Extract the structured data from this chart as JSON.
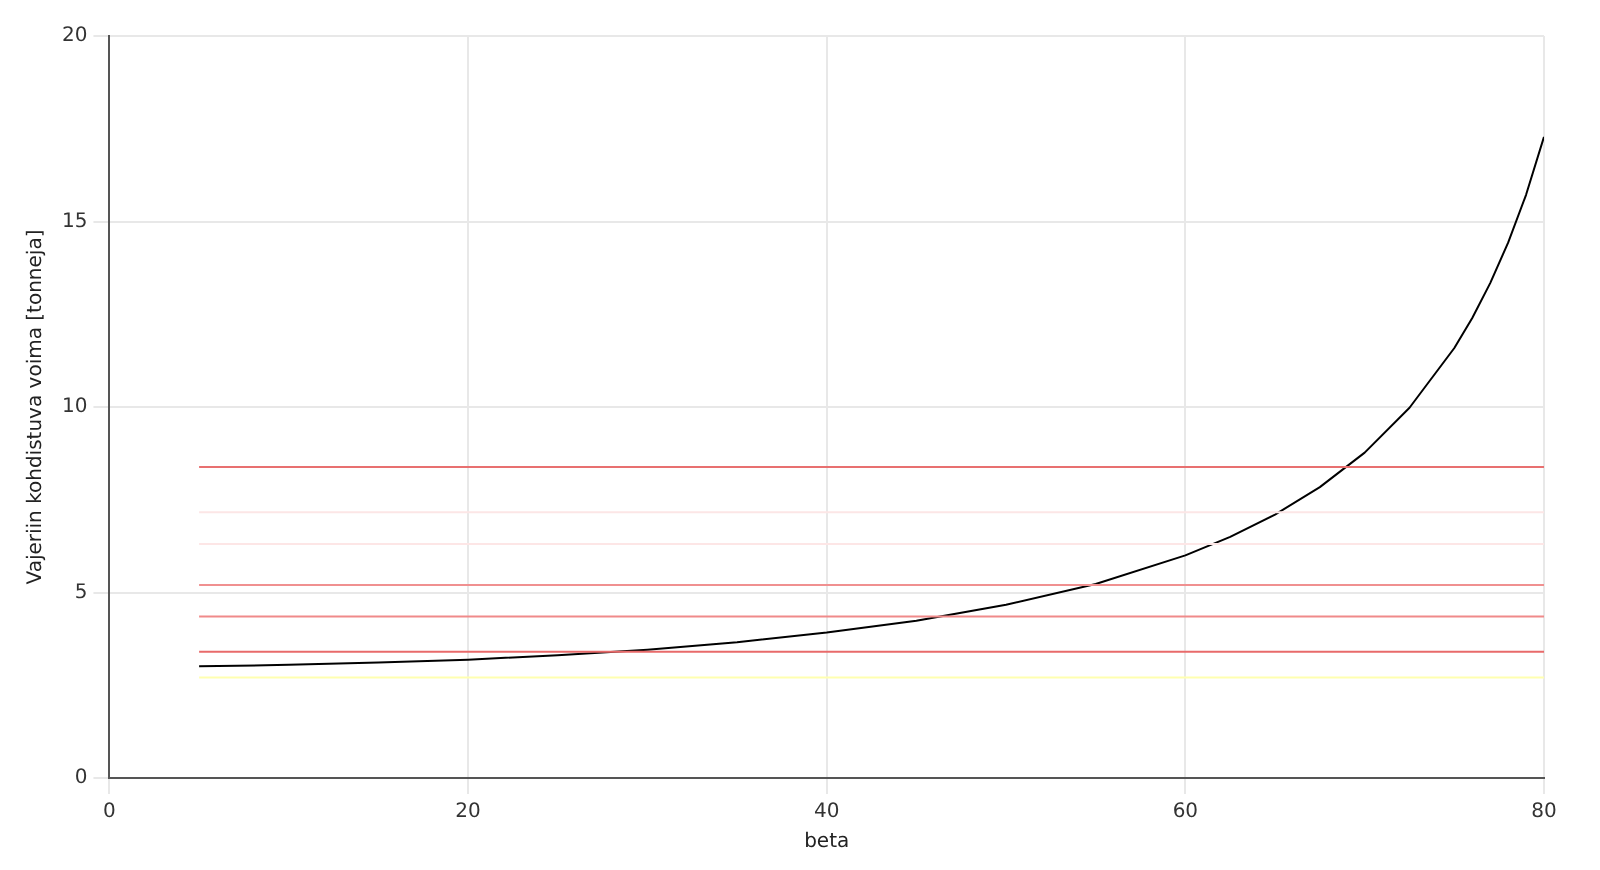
{
  "chart_data": {
    "type": "line",
    "xlabel": "beta",
    "ylabel": "Vajeriin kohdistuva voima [tonneja]",
    "xlim": [
      0,
      80
    ],
    "ylim": [
      0,
      20
    ],
    "xticks": [
      0,
      20,
      40,
      60,
      80
    ],
    "yticks": [
      0,
      5,
      10,
      15,
      20
    ],
    "grid": true,
    "marker": "none",
    "series": [
      {
        "color": "#e87070",
        "x": [
          5,
          80
        ],
        "values": [
          8.38,
          8.38
        ]
      },
      {
        "color": "#fce6e6",
        "x": [
          5,
          80
        ],
        "values": [
          7.16,
          7.16
        ]
      },
      {
        "color": "#fde6e6",
        "x": [
          5,
          80
        ],
        "values": [
          6.31,
          6.31
        ]
      },
      {
        "color": "#f09090",
        "x": [
          5,
          80
        ],
        "values": [
          5.2,
          5.2
        ]
      },
      {
        "color": "#f08a8a",
        "x": [
          5,
          80
        ],
        "values": [
          4.35,
          4.35
        ]
      },
      {
        "color": "#e86a6a",
        "x": [
          5,
          80
        ],
        "values": [
          3.4,
          3.4
        ]
      },
      {
        "color": "#ffffb0",
        "x": [
          5,
          80
        ],
        "values": [
          2.71,
          2.71
        ]
      },
      {
        "color": "#000000",
        "x": [
          5,
          10,
          15,
          20,
          25,
          30,
          35,
          40,
          45,
          50,
          55,
          60,
          62.5,
          65,
          67.5,
          70,
          72.5,
          75,
          76,
          77,
          78,
          79,
          80
        ],
        "values": [
          3.01,
          3.05,
          3.11,
          3.19,
          3.31,
          3.46,
          3.66,
          3.92,
          4.24,
          4.67,
          5.23,
          6.0,
          6.5,
          7.1,
          7.84,
          8.77,
          9.98,
          11.59,
          12.4,
          13.34,
          14.43,
          15.72,
          17.28
        ]
      }
    ]
  }
}
